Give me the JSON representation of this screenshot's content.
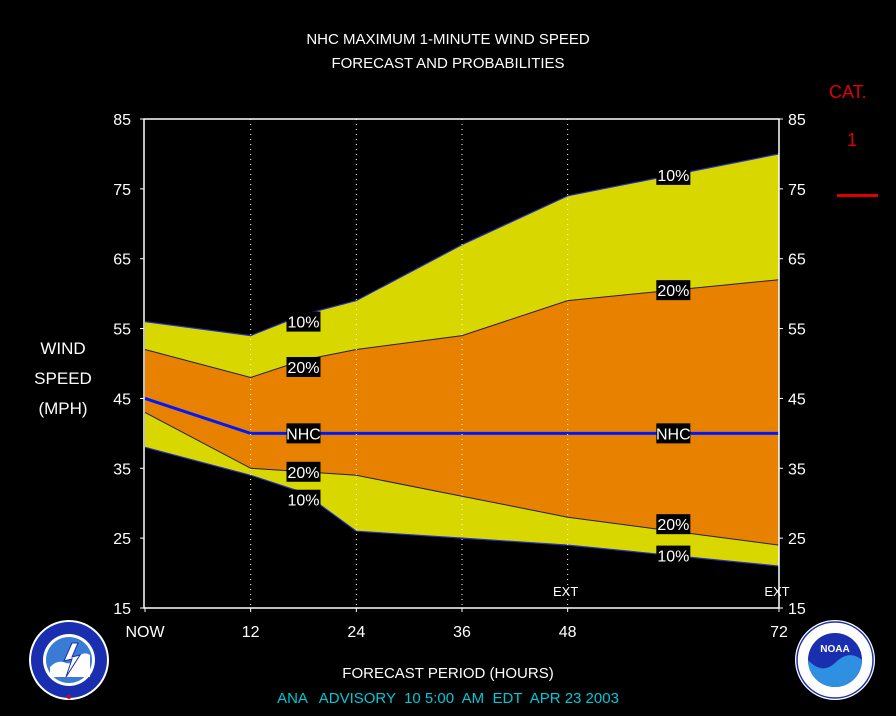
{
  "title_line1": "NHC MAXIMUM 1-MINUTE WIND SPEED",
  "title_line2": "FORECAST AND PROBABILITIES",
  "ylabel_lines": [
    "WIND",
    "SPEED",
    "(MPH)"
  ],
  "xlabel": "FORECAST PERIOD (HOURS)",
  "advisory": "ANA   ADVISORY  10 5:00  AM  EDT  APR 23 2003",
  "category": {
    "label": "CAT.",
    "value": "1",
    "line_color": "#e00000"
  },
  "colors": {
    "band_10": "#d8d800",
    "band_20": "#e88000",
    "nhc": "#0018ff",
    "category": "#e00000",
    "advisory": "#00c8d8"
  },
  "logos": {
    "left": "NATIONAL WEATHER SERVICE",
    "right": "NOAA"
  },
  "chart_data": {
    "type": "area",
    "title": "NHC MAXIMUM 1-MINUTE WIND SPEED FORECAST AND PROBABILITIES",
    "xlabel": "FORECAST PERIOD (HOURS)",
    "ylabel": "WIND SPEED (MPH)",
    "ylim": [
      15,
      85
    ],
    "xlim": [
      0,
      72
    ],
    "x_ticks": [
      {
        "x": 0,
        "label": "NOW"
      },
      {
        "x": 12,
        "label": "12"
      },
      {
        "x": 24,
        "label": "24"
      },
      {
        "x": 36,
        "label": "36"
      },
      {
        "x": 48,
        "label": "48"
      },
      {
        "x": 72,
        "label": "72"
      }
    ],
    "y_ticks": [
      15,
      25,
      35,
      45,
      55,
      65,
      75,
      85
    ],
    "x_markers": [
      {
        "x": 48,
        "label": "EXT"
      },
      {
        "x": 72,
        "label": "EXT"
      }
    ],
    "grid_x": [
      12,
      24,
      36,
      48
    ],
    "series": [
      {
        "name": "10%",
        "x": [
          0,
          12,
          18,
          24,
          36,
          48,
          60,
          72
        ],
        "values": [
          56,
          54,
          57,
          59,
          67,
          74,
          77,
          80
        ]
      },
      {
        "name": "20%",
        "x": [
          0,
          12,
          18,
          24,
          36,
          48,
          60,
          72
        ],
        "values": [
          52,
          48,
          50.5,
          52,
          54,
          59,
          60.5,
          62
        ]
      },
      {
        "name": "NHC",
        "x": [
          0,
          12,
          24,
          36,
          48,
          60,
          72
        ],
        "values": [
          45,
          40,
          40,
          40,
          40,
          40,
          40
        ]
      },
      {
        "name": "20%",
        "x": [
          0,
          12,
          18,
          24,
          36,
          48,
          60,
          72
        ],
        "values": [
          43,
          35,
          34.5,
          34,
          31,
          28,
          26,
          24
        ]
      },
      {
        "name": "10%",
        "x": [
          0,
          12,
          18,
          24,
          36,
          48,
          60,
          72
        ],
        "values": [
          38,
          34,
          31.5,
          26,
          25,
          24,
          22.5,
          21
        ]
      }
    ],
    "series_labels": [
      {
        "text": "10%",
        "x": 18,
        "y": 56
      },
      {
        "text": "20%",
        "x": 18,
        "y": 49.5
      },
      {
        "text": "NHC",
        "x": 18,
        "y": 40
      },
      {
        "text": "20%",
        "x": 18,
        "y": 34.5
      },
      {
        "text": "10%",
        "x": 18,
        "y": 30.5
      },
      {
        "text": "10%",
        "x": 60,
        "y": 77
      },
      {
        "text": "20%",
        "x": 60,
        "y": 60.5
      },
      {
        "text": "NHC",
        "x": 60,
        "y": 40
      },
      {
        "text": "20%",
        "x": 60,
        "y": 27
      },
      {
        "text": "10%",
        "x": 60,
        "y": 22.5
      }
    ]
  }
}
